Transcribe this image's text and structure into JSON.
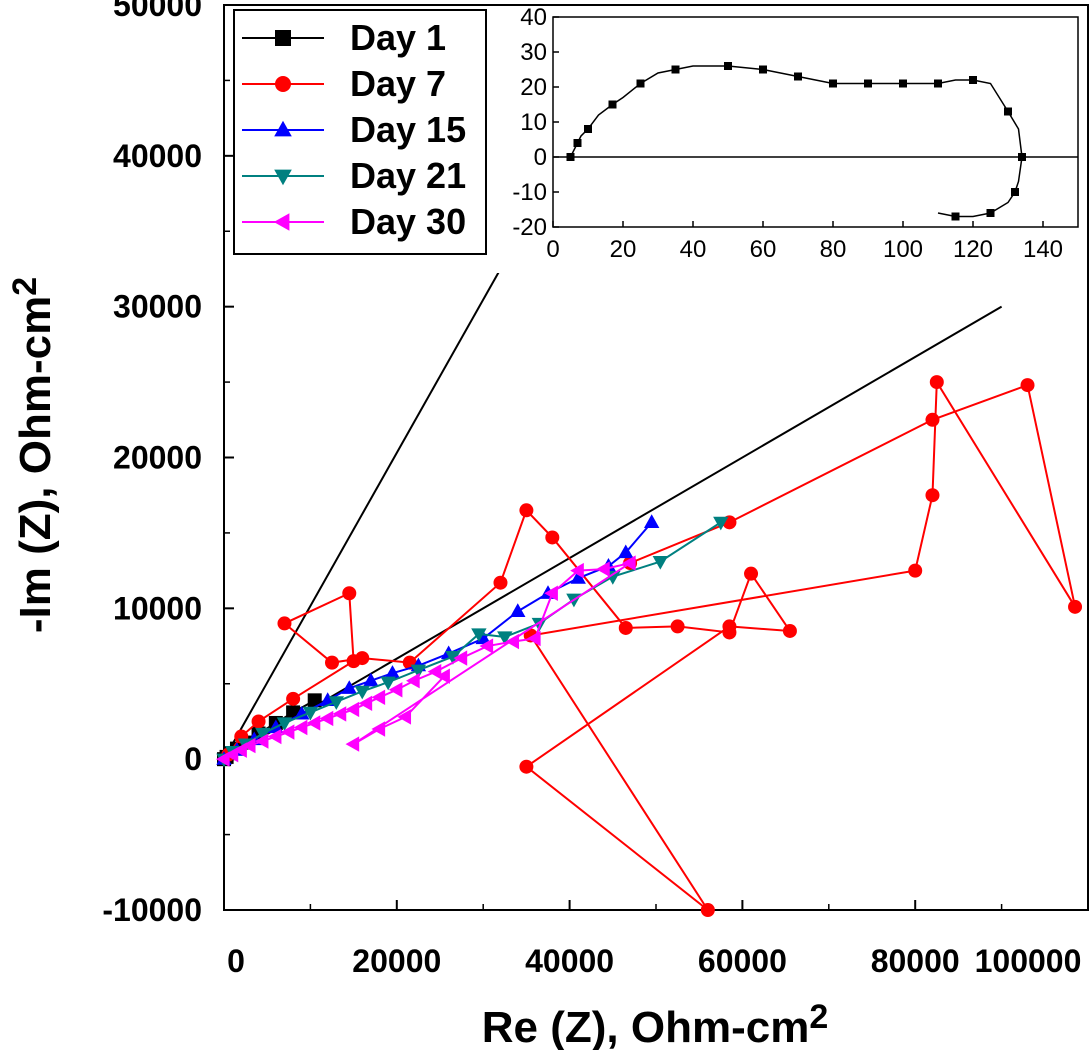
{
  "chart_data": [
    {
      "type": "scatter",
      "name": "nyquist-main",
      "xlabel": "Re (Z), Ohm-cm",
      "xlabel_sup": "2",
      "ylabel": "-Im (Z), Ohm-cm",
      "ylabel_sup": "2",
      "xlim": [
        0,
        100000
      ],
      "ylim": [
        -10000,
        50000
      ],
      "x_ticks": [
        0,
        20000,
        40000,
        60000,
        80000,
        100000
      ],
      "x_tick_labels": [
        "0",
        "20000",
        "40000",
        "60000",
        "80000",
        "100000"
      ],
      "y_ticks": [
        -10000,
        0,
        10000,
        20000,
        30000,
        40000,
        50000
      ],
      "y_tick_labels": [
        "-10000",
        "0",
        "10000",
        "20000",
        "30000",
        "40000",
        "50000"
      ],
      "legend_position": "top-left",
      "reference_lines": [
        {
          "name": "steep-reference-line",
          "color": "#000000",
          "x": [
            0,
            32000
          ],
          "y": [
            0,
            32500
          ]
        },
        {
          "name": "shallow-reference-line",
          "color": "#000000",
          "x": [
            0,
            90000
          ],
          "y": [
            0,
            30000
          ]
        }
      ],
      "series": [
        {
          "name": "Day 1",
          "color": "#000000",
          "marker": "square",
          "x": [
            0,
            300,
            800,
            1500,
            2500,
            4000,
            6000,
            8000,
            10500
          ],
          "y": [
            0,
            150,
            400,
            700,
            1100,
            1700,
            2400,
            3100,
            3900
          ]
        },
        {
          "name": "Day 7",
          "color": "#ff0000",
          "marker": "circle",
          "x": [
            500,
            2000,
            4000,
            8000,
            15000,
            14500,
            7000,
            12500,
            16000,
            21500,
            32000,
            35000,
            38000,
            46500,
            52500,
            58500,
            61000,
            65500,
            58500,
            35000,
            56000,
            35500,
            80000,
            82000,
            82500,
            98500,
            93000,
            82000,
            58500,
            47000
          ],
          "y": [
            300,
            1500,
            2500,
            4000,
            6500,
            11000,
            9000,
            6400,
            6700,
            6400,
            11700,
            16500,
            14700,
            8700,
            8800,
            8400,
            12300,
            8500,
            8800,
            -500,
            -10000,
            8200,
            12500,
            17500,
            25000,
            10100,
            24800,
            22500,
            15700,
            13000
          ]
        },
        {
          "name": "Day 15",
          "color": "#0000ff",
          "marker": "triangle-up",
          "x": [
            0,
            1500,
            3500,
            6000,
            9000,
            12000,
            14500,
            17000,
            19500,
            22500,
            26000,
            30000,
            34000,
            37500,
            41000,
            44500,
            46500,
            49500
          ],
          "y": [
            0,
            600,
            1300,
            2100,
            3000,
            3900,
            4700,
            5200,
            5700,
            6200,
            7000,
            8000,
            9800,
            11000,
            12000,
            12800,
            13700,
            15700
          ]
        },
        {
          "name": "Day 21",
          "color": "#008080",
          "marker": "triangle-down",
          "x": [
            0,
            1000,
            2500,
            4500,
            7000,
            10000,
            13000,
            16000,
            19000,
            22500,
            26500,
            29500,
            32500,
            36500,
            40500,
            45000,
            50500,
            57500
          ],
          "y": [
            0,
            500,
            1000,
            1700,
            2400,
            3100,
            3800,
            4500,
            5100,
            5900,
            6800,
            8300,
            8100,
            9000,
            10600,
            12100,
            13100,
            15700
          ]
        },
        {
          "name": "Day 30",
          "color": "#ff00ff",
          "marker": "triangle-left",
          "x": [
            0,
            1000,
            2000,
            3000,
            4500,
            6000,
            7500,
            9000,
            10500,
            12000,
            13500,
            15000,
            16500,
            18000,
            20000,
            22000,
            24500,
            27500,
            30500,
            33500,
            36000,
            38000,
            41000,
            44000,
            47000,
            15000,
            18000,
            21000,
            25500
          ],
          "y": [
            0,
            300,
            600,
            900,
            1200,
            1500,
            1800,
            2100,
            2400,
            2700,
            3000,
            3300,
            3700,
            4100,
            4600,
            5200,
            5800,
            6700,
            7500,
            7800,
            8000,
            11000,
            12500,
            12600,
            13000,
            1000,
            2000,
            2800,
            5500
          ]
        }
      ]
    },
    {
      "type": "line",
      "name": "nyquist-inset",
      "xlim": [
        0,
        150
      ],
      "ylim": [
        -20,
        40
      ],
      "x_ticks": [
        0,
        20,
        40,
        60,
        80,
        100,
        120,
        140
      ],
      "x_tick_labels": [
        "0",
        "20",
        "40",
        "60",
        "80",
        "100",
        "120",
        "140"
      ],
      "y_ticks": [
        -20,
        -10,
        0,
        10,
        20,
        30,
        40
      ],
      "y_tick_labels": [
        "-20",
        "-10",
        "0",
        "10",
        "20",
        "30",
        "40"
      ],
      "zero_line": 0,
      "series": [
        {
          "name": "Day 1 (inset)",
          "color": "#000000",
          "marker": "square",
          "x": [
            5,
            6,
            7,
            8,
            10,
            13,
            17,
            20,
            25,
            30,
            35,
            40,
            50,
            55,
            60,
            65,
            70,
            75,
            80,
            85,
            90,
            95,
            100,
            105,
            110,
            115,
            120,
            125,
            130,
            133,
            134,
            133,
            132,
            130,
            125,
            120,
            115,
            110
          ],
          "y": [
            0,
            2,
            4,
            6,
            8,
            12,
            15,
            17,
            21,
            24,
            25,
            26,
            26,
            25.5,
            25,
            24,
            23,
            22,
            21,
            21,
            21,
            21,
            21,
            21,
            21,
            22,
            22,
            21,
            13,
            8,
            0,
            -7,
            -10,
            -13,
            -16,
            -17,
            -17,
            -16
          ]
        }
      ]
    }
  ],
  "legend": {
    "items": [
      {
        "label": "Day 1",
        "color": "#000000",
        "marker": "square"
      },
      {
        "label": "Day 7",
        "color": "#ff0000",
        "marker": "circle"
      },
      {
        "label": "Day 15",
        "color": "#0000ff",
        "marker": "triangle-up"
      },
      {
        "label": "Day 21",
        "color": "#008080",
        "marker": "triangle-down"
      },
      {
        "label": "Day 30",
        "color": "#ff00ff",
        "marker": "triangle-left"
      }
    ]
  }
}
